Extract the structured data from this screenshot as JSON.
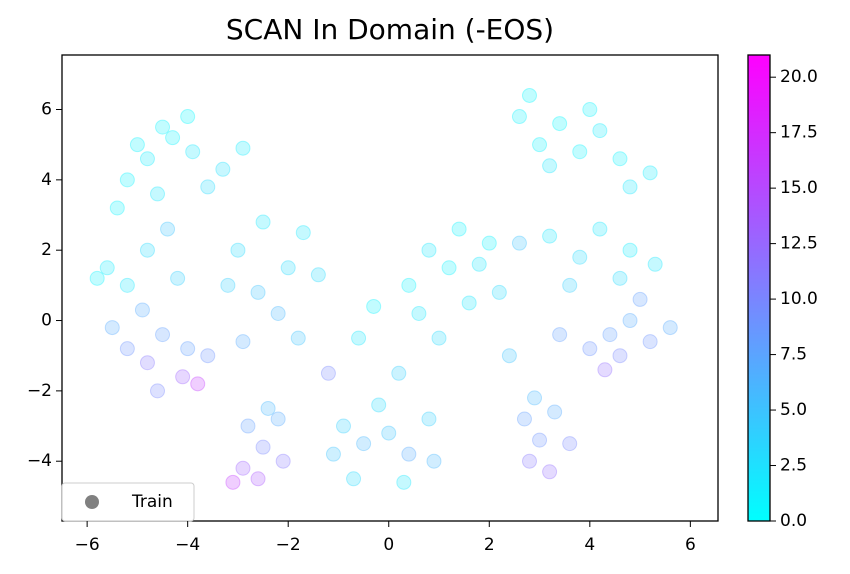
{
  "chart_data": {
    "type": "scatter",
    "title": "SCAN In Domain (-EOS)",
    "xlim": [
      -6.5,
      6.55
    ],
    "ylim": [
      -5.7,
      7.55
    ],
    "xticks": [
      {
        "value": -6,
        "label": "−6"
      },
      {
        "value": -4,
        "label": "−4"
      },
      {
        "value": -2,
        "label": "−2"
      },
      0,
      2,
      4,
      6
    ],
    "yticks": [
      {
        "value": -4,
        "label": "−4"
      },
      {
        "value": -2,
        "label": "−2"
      },
      0,
      2,
      4,
      6
    ],
    "colormap": [
      "#00ffff",
      "#ff00ff"
    ],
    "clim": [
      0,
      21
    ],
    "cticks": [
      {
        "value": 0,
        "label": "0.0"
      },
      {
        "value": 2.5,
        "label": "2.5"
      },
      {
        "value": 5,
        "label": "5.0"
      },
      {
        "value": 7.5,
        "label": "7.5"
      },
      {
        "value": 10,
        "label": "10.0"
      },
      {
        "value": 12.5,
        "label": "12.5"
      },
      {
        "value": 15,
        "label": "15.0"
      },
      {
        "value": 17.5,
        "label": "17.5"
      },
      {
        "value": 20,
        "label": "20.0"
      }
    ],
    "legend": "lower left",
    "series": [
      {
        "name": "Train",
        "color": "#808080",
        "x": [
          -5.2,
          -4.8,
          -4.3,
          -4.0,
          -4.6,
          -5.4,
          -3.9,
          -4.5,
          -3.3,
          -2.9,
          -5.0,
          -3.6,
          -5.6,
          -5.2,
          -4.8,
          -5.8,
          -4.4,
          -4.2,
          -5.2,
          -4.8,
          -4.5,
          -4.1,
          -3.8,
          -5.5,
          -4.6,
          -4.0,
          -4.9,
          -3.6,
          -3.0,
          -2.5,
          -2.0,
          -2.6,
          -1.7,
          -1.4,
          -2.2,
          -3.2,
          -1.8,
          -2.9,
          -2.8,
          -2.5,
          -2.2,
          -2.9,
          -2.6,
          -3.1,
          -2.1,
          -2.4,
          -0.9,
          -0.5,
          0.0,
          0.4,
          0.8,
          -0.7,
          0.3,
          -0.2,
          0.9,
          -1.1,
          0.4,
          0.8,
          1.2,
          1.6,
          2.0,
          1.0,
          0.6,
          1.8,
          2.2,
          1.4,
          0.2,
          2.6,
          3.0,
          3.4,
          3.8,
          4.2,
          4.6,
          3.2,
          4.8,
          2.8,
          4.0,
          5.2,
          4.4,
          4.8,
          5.2,
          5.6,
          4.6,
          4.0,
          5.0,
          4.3,
          2.7,
          3.0,
          3.3,
          2.8,
          3.2,
          3.6,
          2.9,
          3.2,
          3.8,
          4.2,
          4.8,
          5.3,
          3.6,
          4.6,
          2.6,
          -1.2,
          -0.6,
          2.4,
          3.4,
          -0.3
        ],
        "y": [
          4.0,
          4.6,
          5.2,
          5.8,
          3.6,
          3.2,
          4.8,
          5.5,
          4.3,
          4.9,
          5.0,
          3.8,
          1.5,
          1.0,
          2.0,
          1.2,
          2.6,
          1.2,
          -0.8,
          -1.2,
          -0.4,
          -1.6,
          -1.8,
          -0.2,
          -2.0,
          -0.8,
          0.3,
          -1.0,
          2.0,
          2.8,
          1.5,
          0.8,
          2.5,
          1.3,
          0.2,
          1.0,
          -0.5,
          -0.6,
          -3.0,
          -3.6,
          -2.8,
          -4.2,
          -4.5,
          -4.6,
          -4.0,
          -2.5,
          -3.0,
          -3.5,
          -3.2,
          -3.8,
          -2.8,
          -4.5,
          -4.6,
          -2.4,
          -4.0,
          -3.8,
          1.0,
          2.0,
          1.5,
          0.5,
          2.2,
          -0.5,
          0.2,
          1.6,
          0.8,
          2.6,
          -1.5,
          5.8,
          5.0,
          5.6,
          4.8,
          5.4,
          4.6,
          4.4,
          3.8,
          6.4,
          6.0,
          4.2,
          -0.4,
          0.0,
          -0.6,
          -0.2,
          -1.0,
          -0.8,
          0.6,
          -1.4,
          -2.8,
          -3.4,
          -2.6,
          -4.0,
          -4.3,
          -3.5,
          -2.2,
          2.4,
          1.8,
          2.6,
          2.0,
          1.6,
          1.0,
          1.2,
          2.2,
          -1.5,
          -0.5,
          -1.0,
          -0.4,
          0.4
        ],
        "c": [
          1,
          1.5,
          1,
          0.5,
          2,
          1,
          2,
          1,
          2.5,
          1.5,
          1,
          3,
          1.5,
          2,
          3,
          1,
          5,
          4,
          9,
          11,
          8,
          13,
          16,
          7,
          10,
          8,
          7,
          9,
          3,
          2,
          3,
          5,
          2,
          3,
          6,
          4,
          5,
          7,
          8,
          10,
          7,
          13,
          14,
          16,
          11,
          6,
          4,
          6,
          5,
          7,
          4,
          3,
          2,
          3,
          6,
          5,
          1,
          2,
          1,
          2,
          1,
          3,
          2,
          2,
          3,
          1,
          4,
          1,
          1,
          0.5,
          1,
          1.5,
          1,
          2,
          2,
          0.5,
          1,
          1.5,
          8,
          7,
          9,
          7,
          10,
          9,
          8,
          12,
          8,
          9,
          7,
          11,
          12,
          10,
          6,
          2,
          3,
          2,
          1.5,
          2,
          4,
          3,
          5,
          10,
          2,
          5,
          8,
          1
        ]
      }
    ]
  }
}
